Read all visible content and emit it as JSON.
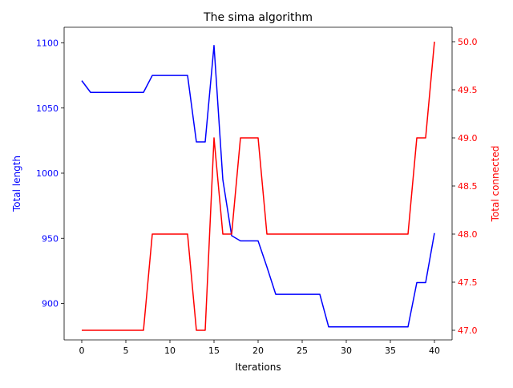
{
  "chart_data": {
    "type": "line",
    "title": "The sima algorithm",
    "xlabel": "Iterations",
    "xlim": [
      -2,
      42
    ],
    "xticks": [
      0,
      5,
      10,
      15,
      20,
      25,
      30,
      35,
      40
    ],
    "x": [
      0,
      1,
      2,
      3,
      4,
      5,
      6,
      7,
      8,
      9,
      10,
      11,
      12,
      13,
      14,
      15,
      16,
      17,
      18,
      19,
      20,
      21,
      22,
      23,
      24,
      25,
      26,
      27,
      28,
      29,
      30,
      31,
      32,
      33,
      34,
      35,
      36,
      37,
      38,
      39,
      40
    ],
    "grid": false,
    "left_axis": {
      "label": "Total length",
      "color": "#0000ff",
      "ylim": [
        872,
        1112
      ],
      "ticks": [
        900,
        950,
        1000,
        1050,
        1100
      ],
      "values": [
        1071,
        1062,
        1062,
        1062,
        1062,
        1062,
        1062,
        1062,
        1075,
        1075,
        1075,
        1075,
        1075,
        1024,
        1024,
        1098,
        995,
        952,
        948,
        948,
        948,
        928,
        907,
        907,
        907,
        907,
        907,
        907,
        882,
        882,
        882,
        882,
        882,
        882,
        882,
        882,
        882,
        882,
        916,
        916,
        954
      ]
    },
    "right_axis": {
      "label": "Total connected",
      "color": "#ff0000",
      "ylim": [
        46.9,
        50.15
      ],
      "ticks": [
        47.0,
        47.5,
        48.0,
        48.5,
        49.0,
        49.5,
        50.0
      ],
      "tick_labels": [
        "47.0",
        "47.5",
        "48.0",
        "48.5",
        "49.0",
        "49.5",
        "50.0"
      ],
      "values": [
        47,
        47,
        47,
        47,
        47,
        47,
        47,
        47,
        48,
        48,
        48,
        48,
        48,
        47,
        47,
        49,
        48,
        48,
        49,
        49,
        49,
        48,
        48,
        48,
        48,
        48,
        48,
        48,
        48,
        48,
        48,
        48,
        48,
        48,
        48,
        48,
        48,
        48,
        49,
        49,
        50
      ]
    }
  }
}
